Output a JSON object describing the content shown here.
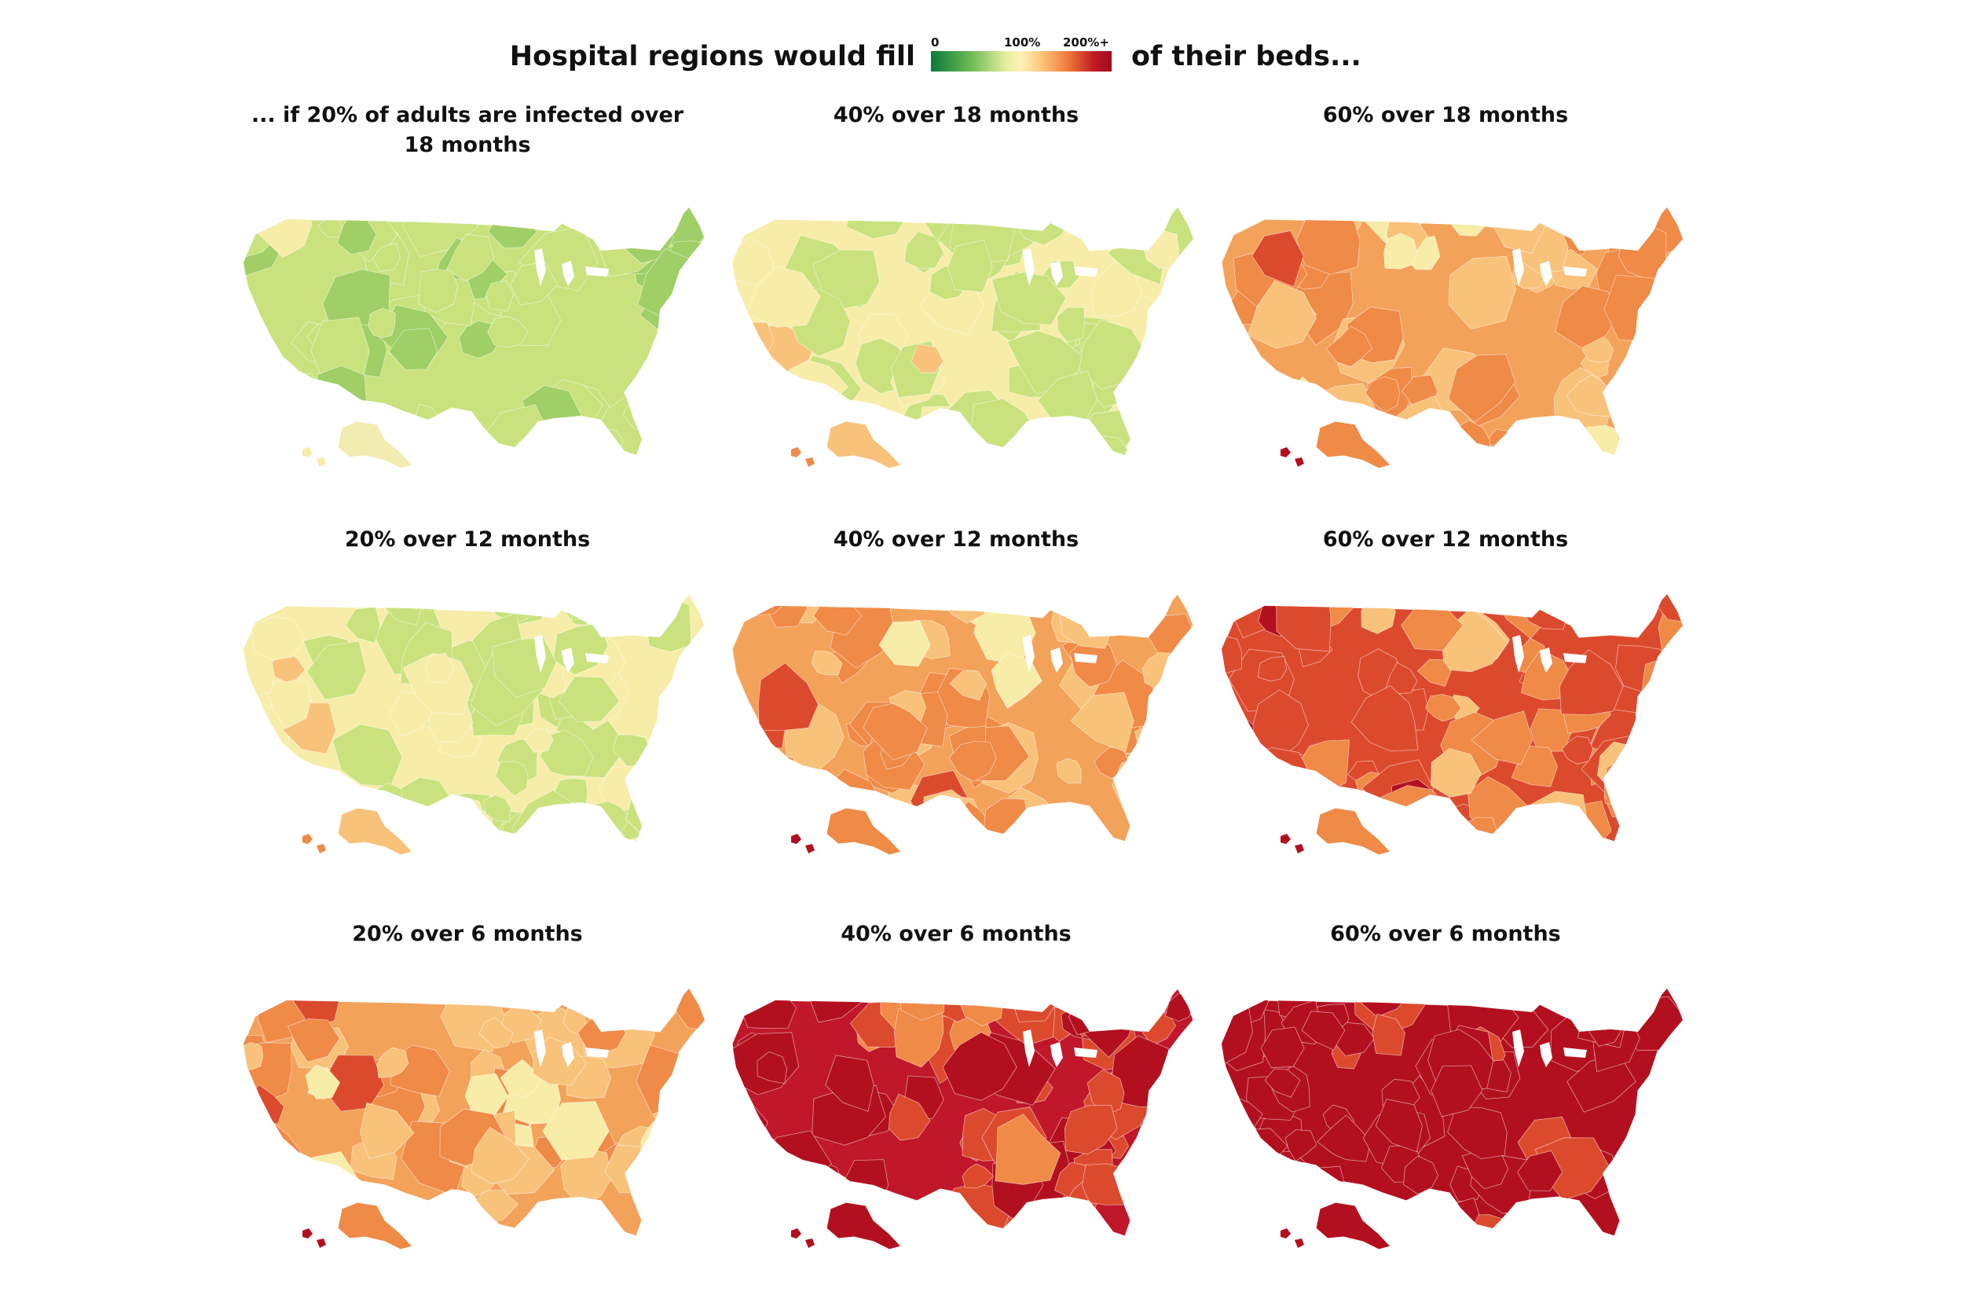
{
  "header": {
    "title_before": "Hospital regions would fill",
    "title_after": "of their beds...",
    "legend_ticks": [
      "0",
      "100%",
      "200%+"
    ]
  },
  "colors": {
    "green_dark": "#0a7a3b",
    "green_light": "#c9e27e",
    "yellow": "#f7eda8",
    "peach": "#f8c27a",
    "orange": "#ef8a47",
    "red_orange": "#dc4a2e",
    "dark_red": "#b3101f"
  },
  "maps": [
    {
      "title": "... if 20% of adults are infected over 18 months",
      "adults_infected_pct": 20,
      "months": 18,
      "color_level": 0
    },
    {
      "title": "40% over 18 months",
      "adults_infected_pct": 40,
      "months": 18,
      "color_level": 1
    },
    {
      "title": "60% over 18 months",
      "adults_infected_pct": 60,
      "months": 18,
      "color_level": 3
    },
    {
      "title": "20% over 12 months",
      "adults_infected_pct": 20,
      "months": 12,
      "color_level": 1
    },
    {
      "title": "40% over 12 months",
      "adults_infected_pct": 40,
      "months": 12,
      "color_level": 3
    },
    {
      "title": "60% over 12 months",
      "adults_infected_pct": 60,
      "months": 12,
      "color_level": 4
    },
    {
      "title": "20% over 6 months",
      "adults_infected_pct": 20,
      "months": 6,
      "color_level": 3
    },
    {
      "title": "40% over 6 months",
      "adults_infected_pct": 40,
      "months": 6,
      "color_level": 5
    },
    {
      "title": "60% over 6 months",
      "adults_infected_pct": 60,
      "months": 6,
      "color_level": 6
    }
  ]
}
